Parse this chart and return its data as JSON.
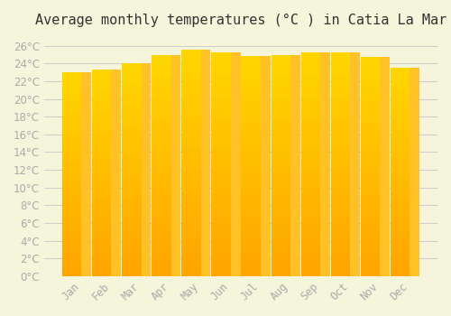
{
  "title": "Average monthly temperatures (°C ) in Catia La Mar",
  "months": [
    "Jan",
    "Feb",
    "Mar",
    "Apr",
    "May",
    "Jun",
    "Jul",
    "Aug",
    "Sep",
    "Oct",
    "Nov",
    "Dec"
  ],
  "values": [
    23.0,
    23.3,
    24.0,
    25.0,
    25.6,
    25.3,
    24.8,
    25.0,
    25.3,
    25.3,
    24.7,
    23.5
  ],
  "bar_color_top": "#FFC125",
  "bar_color_bottom": "#FFA500",
  "background_color": "#F5F5DC",
  "grid_color": "#CCCCCC",
  "ylim": [
    0,
    27
  ],
  "ytick_step": 2,
  "title_fontsize": 11,
  "tick_fontsize": 8.5,
  "tick_color": "#AAAAAA",
  "axis_font": "monospace"
}
